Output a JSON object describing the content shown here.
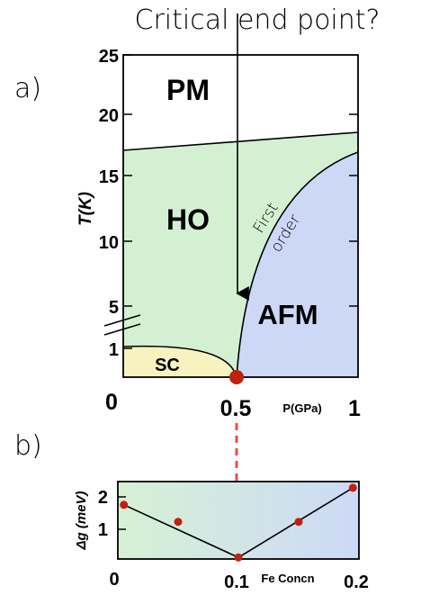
{
  "annotation": {
    "top_label": "Critical end point?"
  },
  "panel_a": {
    "label": "a)",
    "ylabel": "T(K)",
    "xlabel": "P(GPa)",
    "yticks": [
      "25",
      "20",
      "15",
      "10",
      "5",
      "1"
    ],
    "xticks": [
      "0",
      "0.5",
      "1"
    ],
    "phases": {
      "pm": "PM",
      "ho": "HO",
      "afm": "AFM",
      "sc": "SC",
      "boundary_note_1": "First",
      "boundary_note_2": "order"
    },
    "colors": {
      "ho": "#d3f0d3",
      "afm": "#cdd8f7",
      "sc": "#f7f2c0",
      "point": "#c0200e"
    }
  },
  "panel_b": {
    "label": "b)",
    "ylabel": "Δg (meV)",
    "xlabel": "Fe Concn",
    "yticks": [
      "2",
      "1"
    ],
    "xticks": [
      "0",
      "0.1",
      "0.2"
    ],
    "chart_data": {
      "type": "scatter",
      "x": [
        0.005,
        0.05,
        0.1,
        0.15,
        0.195
      ],
      "y": [
        1.75,
        1.2,
        0.05,
        1.2,
        2.3
      ],
      "xlim": [
        0,
        0.2
      ],
      "ylim": [
        0,
        2.5
      ]
    }
  }
}
